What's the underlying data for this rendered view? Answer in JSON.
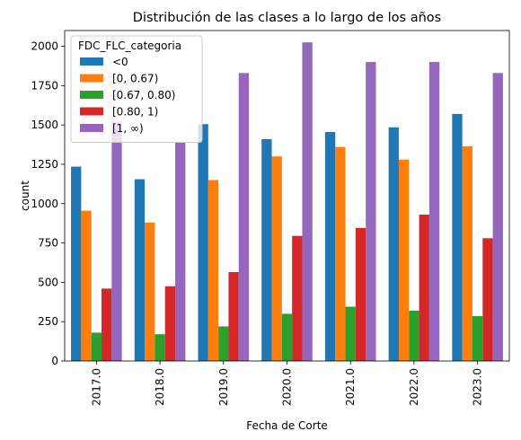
{
  "chart_data": {
    "type": "bar",
    "title": "Distribución de las clases a lo largo de los años",
    "xlabel": "Fecha de Corte",
    "ylabel": "count",
    "ylim": [
      0,
      2100
    ],
    "yticks": [
      0,
      250,
      500,
      750,
      1000,
      1250,
      1500,
      1750,
      2000
    ],
    "categories": [
      "2017.0",
      "2018.0",
      "2019.0",
      "2020.0",
      "2021.0",
      "2022.0",
      "2023.0"
    ],
    "legend_title": "FDC_FLC_categoria",
    "legend_position": "top-left",
    "grid": false,
    "series": [
      {
        "name": "<0",
        "color": "#1f77b4",
        "values": [
          1235,
          1155,
          1505,
          1410,
          1455,
          1485,
          1570
        ]
      },
      {
        "name": "[0, 0.67)",
        "color": "#ff7f0e",
        "values": [
          955,
          880,
          1150,
          1300,
          1360,
          1280,
          1365
        ]
      },
      {
        "name": "[0.67, 0.80)",
        "color": "#2ca02c",
        "values": [
          180,
          170,
          220,
          300,
          345,
          320,
          285
        ]
      },
      {
        "name": "[0.80, 1)",
        "color": "#d62728",
        "values": [
          460,
          475,
          565,
          795,
          845,
          930,
          780
        ]
      },
      {
        "name": "[1, ∞)",
        "color": "#9467bd",
        "values": [
          1520,
          1390,
          1830,
          2025,
          1900,
          1900,
          1830
        ]
      }
    ]
  }
}
